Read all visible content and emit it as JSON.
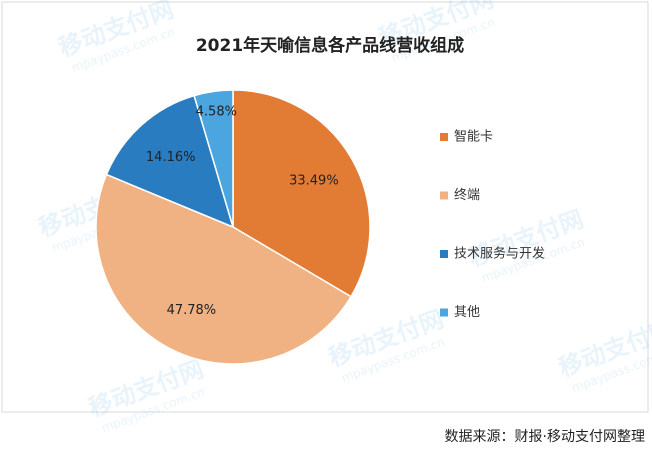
{
  "chart_data": {
    "type": "pie",
    "title": "2021年天喻信息各产品线营收组成",
    "categories": [
      "智能卡",
      "终端",
      "技术服务与开发",
      "其他"
    ],
    "values": [
      33.49,
      47.78,
      14.16,
      4.58
    ],
    "value_labels": [
      "33.49%",
      "47.78%",
      "14.16%",
      "4.58%"
    ],
    "colors": [
      "#e27c35",
      "#f0b283",
      "#2a7cc0",
      "#4ba6e0"
    ],
    "legend": "right"
  },
  "source": "数据来源：财报·移动支付网整理",
  "watermark": {
    "name": "移动支付网",
    "url": "mpaypass.com.cn"
  }
}
